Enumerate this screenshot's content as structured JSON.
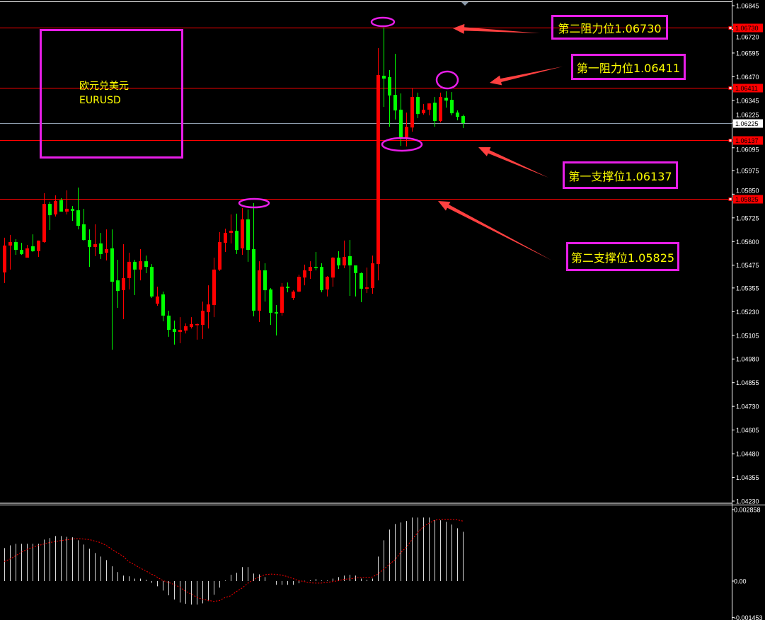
{
  "symbol": {
    "name_cn": "欧元兑美元",
    "ticker": "EURUSD"
  },
  "colors": {
    "up": "#ff0000",
    "down": "#00ff00",
    "level": "#ff0000",
    "current": "#8c9bab",
    "annotation_border": "#e81ee8",
    "annotation_text": "#ffff00",
    "histogram": "#d9d9d9",
    "signal": "#ff0000"
  },
  "annotations": [
    {
      "text": "第二阻力位1.06730"
    },
    {
      "text": "第一阻力位1.06411"
    },
    {
      "text": "第一支撑位1.06137"
    },
    {
      "text": "第二支撑位1.05825"
    }
  ],
  "chart_data": [
    {
      "type": "candlestick",
      "title": "",
      "up_color": "red",
      "down_color": "green",
      "ylim": [
        1.0423,
        1.06845
      ],
      "y_ticks": [
        "1.06845",
        "1.06720",
        "1.06595",
        "1.06470",
        "1.06345",
        "1.06225",
        "1.06095",
        "1.05975",
        "1.05850",
        "1.05725",
        "1.05600",
        "1.05475",
        "1.05355",
        "1.05230",
        "1.05105",
        "1.04980",
        "1.04855",
        "1.04730",
        "1.04605",
        "1.04480",
        "1.04355",
        "1.04230"
      ],
      "current_price": "1.06225",
      "levels": [
        {
          "price": 1.0673,
          "label": "1.06730"
        },
        {
          "price": 1.06411,
          "label": "1.06411"
        },
        {
          "price": 1.06137,
          "label": "1.06137"
        },
        {
          "price": 1.05825,
          "label": "1.05825"
        }
      ],
      "ohlc": [
        [
          1.05437,
          1.0562,
          1.05381,
          1.05579
        ],
        [
          1.05579,
          1.05635,
          1.05452,
          1.05597
        ],
        [
          1.05597,
          1.05612,
          1.0553,
          1.05556
        ],
        [
          1.05556,
          1.05593,
          1.0553,
          1.05534
        ],
        [
          1.05515,
          1.05582,
          1.05515,
          1.05564
        ],
        [
          1.05575,
          1.05638,
          1.05545,
          1.05549
        ],
        [
          1.05549,
          1.05605,
          1.05519,
          1.05605
        ],
        [
          1.05597,
          1.05855,
          1.05593,
          1.05799
        ],
        [
          1.05799,
          1.0581,
          1.05661,
          1.05739
        ],
        [
          1.05743,
          1.05844,
          1.05732,
          1.05814
        ],
        [
          1.05818,
          1.05829,
          1.05758,
          1.05758
        ],
        [
          1.05758,
          1.0587,
          1.05743,
          1.05773
        ],
        [
          1.05773,
          1.05788,
          1.05709,
          1.05762
        ],
        [
          1.05765,
          1.05885,
          1.05664,
          1.05683
        ],
        [
          1.05691,
          1.05773,
          1.05605,
          1.05608
        ],
        [
          1.05608,
          1.05664,
          1.05466,
          1.05571
        ],
        [
          1.05571,
          1.05691,
          1.05523,
          1.05586
        ],
        [
          1.0559,
          1.05646,
          1.05508,
          1.05534
        ],
        [
          1.05541,
          1.05664,
          1.055,
          1.0556
        ],
        [
          1.05564,
          1.05664,
          1.05029,
          1.05388
        ],
        [
          1.05395,
          1.05504,
          1.0525,
          1.05339
        ],
        [
          1.05343,
          1.05586,
          1.0519,
          1.05407
        ],
        [
          1.05407,
          1.05541,
          1.05347,
          1.05493
        ],
        [
          1.05493,
          1.05504,
          1.05317,
          1.05452
        ],
        [
          1.05452,
          1.0556,
          1.05395,
          1.05496
        ],
        [
          1.05496,
          1.05526,
          1.05433,
          1.05466
        ],
        [
          1.05466,
          1.05481,
          1.05302,
          1.0531
        ],
        [
          1.05272,
          1.05362,
          1.05261,
          1.0531
        ],
        [
          1.05321,
          1.05336,
          1.05179,
          1.05209
        ],
        [
          1.05209,
          1.05235,
          1.05097,
          1.05134
        ],
        [
          1.05138,
          1.05183,
          1.05056,
          1.05123
        ],
        [
          1.05123,
          1.05201,
          1.05063,
          1.05134
        ],
        [
          1.0513,
          1.05168,
          1.05115,
          1.05153
        ],
        [
          1.05149,
          1.05201,
          1.05141,
          1.05164
        ],
        [
          1.0516,
          1.05168,
          1.05082,
          1.05164
        ],
        [
          1.0516,
          1.05283,
          1.05086,
          1.05235
        ],
        [
          1.05227,
          1.05369,
          1.05141,
          1.05268
        ],
        [
          1.05265,
          1.05515,
          1.05201,
          1.05452
        ],
        [
          1.05452,
          1.0565,
          1.05444,
          1.05597
        ],
        [
          1.05593,
          1.05668,
          1.05545,
          1.05646
        ],
        [
          1.05646,
          1.05743,
          1.0559,
          1.05657
        ],
        [
          1.05657,
          1.05747,
          1.05534,
          1.05556
        ],
        [
          1.05564,
          1.05777,
          1.0553,
          1.05717
        ],
        [
          1.05717,
          1.05769,
          1.05493,
          1.05556
        ],
        [
          1.0556,
          1.05803,
          1.05205,
          1.05235
        ],
        [
          1.05235,
          1.05496,
          1.05175,
          1.05448
        ],
        [
          1.05448,
          1.05485,
          1.05283,
          1.05343
        ],
        [
          1.05347,
          1.05354,
          1.0516,
          1.05224
        ],
        [
          1.05227,
          1.05265,
          1.05104,
          1.0522
        ],
        [
          1.05224,
          1.05381,
          1.05209,
          1.05362
        ],
        [
          1.05362,
          1.05384,
          1.05332,
          1.05354
        ],
        [
          1.05302,
          1.05343,
          1.05291,
          1.05336
        ],
        [
          1.05336,
          1.05425,
          1.05332,
          1.05414
        ],
        [
          1.0541,
          1.05478,
          1.05369,
          1.05448
        ],
        [
          1.05444,
          1.05496,
          1.05403,
          1.05466
        ],
        [
          1.05466,
          1.05545,
          1.05448,
          1.05463
        ],
        [
          1.05466,
          1.05485,
          1.05332,
          1.05343
        ],
        [
          1.05347,
          1.05418,
          1.0531,
          1.05414
        ],
        [
          1.0541,
          1.05519,
          1.05362,
          1.05515
        ],
        [
          1.05515,
          1.05549,
          1.05455,
          1.05474
        ],
        [
          1.05474,
          1.05605,
          1.05459,
          1.05519
        ],
        [
          1.05523,
          1.05608,
          1.05313,
          1.05474
        ],
        [
          1.05474,
          1.05474,
          1.0531,
          1.05433
        ],
        [
          1.05433,
          1.05437,
          1.0528,
          1.05351
        ],
        [
          1.05351,
          1.05463,
          1.05328,
          1.05358
        ],
        [
          1.05354,
          1.05526,
          1.05324,
          1.05485
        ],
        [
          1.05481,
          1.06621,
          1.05395,
          1.06479
        ],
        [
          1.06475,
          1.0673,
          1.06311,
          1.0646
        ],
        [
          1.06468,
          1.06505,
          1.06206,
          1.06371
        ],
        [
          1.06374,
          1.06591,
          1.06244,
          1.06292
        ],
        [
          1.06296,
          1.06382,
          1.06105,
          1.0615
        ],
        [
          1.0615,
          1.06281,
          1.06102,
          1.06206
        ],
        [
          1.06202,
          1.06408,
          1.0618,
          1.06363
        ],
        [
          1.06363,
          1.06386,
          1.06251,
          1.06273
        ],
        [
          1.06277,
          1.06326,
          1.0627,
          1.06296
        ],
        [
          1.06296,
          1.06329,
          1.06266,
          1.06329
        ],
        [
          1.06333,
          1.06363,
          1.06206,
          1.06236
        ],
        [
          1.06236,
          1.06386,
          1.06229,
          1.06363
        ],
        [
          1.06359,
          1.06393,
          1.06307,
          1.06344
        ],
        [
          1.06348,
          1.06389,
          1.06266,
          1.06277
        ],
        [
          1.06281,
          1.06292,
          1.0624,
          1.06258
        ],
        [
          1.06262,
          1.0627,
          1.06199,
          1.06225
        ]
      ]
    },
    {
      "type": "bar",
      "title": "",
      "ylim": [
        -0.001453,
        0.002858
      ],
      "y_ticks": [
        "0.002858",
        "0.00",
        "-0.001453"
      ],
      "histogram": [
        0.00132,
        0.00143,
        0.00149,
        0.00149,
        0.00149,
        0.00149,
        0.00149,
        0.00166,
        0.00172,
        0.0018,
        0.0018,
        0.00177,
        0.00175,
        0.00163,
        0.00146,
        0.00129,
        0.00112,
        0.00098,
        0.00084,
        0.00059,
        0.00036,
        0.00022,
        0.00019,
        0.0001,
        0.0001,
        5e-05,
        -7e-05,
        -0.00021,
        -0.00038,
        -0.00057,
        -0.00074,
        -0.00086,
        -0.00091,
        -0.00094,
        -0.00094,
        -0.00089,
        -0.0008,
        -0.00055,
        -0.00026,
        2e-05,
        0.00025,
        0.00033,
        0.00056,
        0.00056,
        0.0003,
        0.00027,
        0.00016,
        0.0,
        -0.00015,
        -0.00015,
        -0.00015,
        -0.00015,
        -9e-05,
        1e-05,
        3e-05,
        8e-05,
        2e-05,
        2e-05,
        0.0001,
        0.00016,
        0.00022,
        0.00025,
        0.00022,
        0.0001,
        5e-05,
        0.0001,
        0.00098,
        0.00163,
        0.00206,
        0.00228,
        0.00234,
        0.0024,
        0.00254,
        0.00254,
        0.00254,
        0.00254,
        0.00243,
        0.00243,
        0.00237,
        0.00226,
        0.00211,
        0.00197
      ],
      "signal": [
        0.00078,
        0.00088,
        0.00101,
        0.00115,
        0.00127,
        0.00135,
        0.00142,
        0.00148,
        0.00154,
        0.00158,
        0.00162,
        0.00165,
        0.00168,
        0.0017,
        0.00168,
        0.00166,
        0.0016,
        0.00154,
        0.00143,
        0.00127,
        0.00113,
        0.00099,
        0.00078,
        0.00066,
        0.00052,
        0.00041,
        0.00028,
        0.00016,
        2e-05,
        -5e-05,
        -0.00014,
        -0.00024,
        -0.0004,
        -0.00052,
        -0.00064,
        -0.00073,
        -0.00077,
        -0.00081,
        -0.00078,
        -0.00066,
        -0.00059,
        -0.00042,
        -0.00028,
        -9e-05,
        5e-05,
        0.00016,
        0.00025,
        0.00028,
        0.00027,
        0.00024,
        0.00018,
        0.0001,
        2e-05,
        -2e-05,
        -7e-05,
        -8e-05,
        -8e-05,
        -5e-05,
        -2e-05,
        1e-05,
        7e-05,
        9e-05,
        0.00012,
        0.00014,
        0.00015,
        0.00016,
        0.00028,
        0.00047,
        0.00066,
        0.00085,
        0.00113,
        0.00135,
        0.00165,
        0.00193,
        0.00217,
        0.00231,
        0.00243,
        0.00247,
        0.00247,
        0.00247,
        0.00245,
        0.0024
      ]
    }
  ]
}
